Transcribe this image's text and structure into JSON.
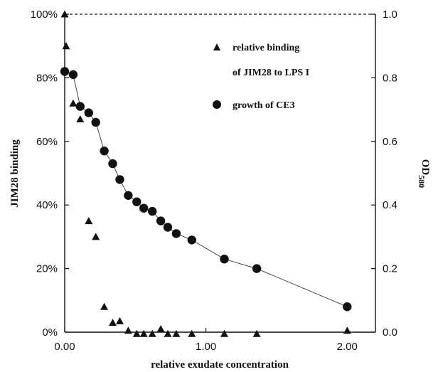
{
  "chart_data": {
    "type": "scatter",
    "title": "",
    "xlabel": "relative exudate concentration",
    "ylabel_left": "JIM28 binding",
    "ylabel_right": {
      "main": "OD",
      "subscript": "580"
    },
    "xlim": [
      0,
      2.2
    ],
    "ylim_left": [
      0,
      100
    ],
    "ylim_right": [
      0,
      1.0
    ],
    "x_ticks": [
      "0.00",
      "1.00",
      "2.00"
    ],
    "y_ticks_left": [
      "0%",
      "20%",
      "40%",
      "60%",
      "80%",
      "100%"
    ],
    "y_ticks_right": [
      "0.0",
      "0.2",
      "0.4",
      "0.6",
      "0.8",
      "1.0"
    ],
    "grid": false,
    "legend_position": "top-right",
    "legend": [
      {
        "marker": "triangle",
        "lines": [
          "relative binding",
          "of JIM28 to LPS I"
        ]
      },
      {
        "marker": "circle",
        "lines": [
          "growth of CE3"
        ]
      }
    ],
    "series": [
      {
        "name": "relative binding of JIM28 to LPS I",
        "axis": "left",
        "marker": "triangle",
        "connected": false,
        "x": [
          0.0,
          0.01,
          0.06,
          0.11,
          0.17,
          0.22,
          0.28,
          0.34,
          0.39,
          0.45,
          0.51,
          0.56,
          0.62,
          0.68,
          0.73,
          0.79,
          0.9,
          1.13,
          1.36,
          2.0
        ],
        "y": [
          100,
          90,
          72,
          67,
          35,
          30,
          8,
          3,
          3.5,
          0.5,
          -0.5,
          -0.5,
          -0.5,
          1,
          -0.5,
          -0.5,
          -0.5,
          -0.5,
          -0.5,
          0.5
        ]
      },
      {
        "name": "growth of CE3",
        "axis": "right",
        "marker": "circle",
        "connected": true,
        "x": [
          0.0,
          0.06,
          0.11,
          0.17,
          0.22,
          0.28,
          0.34,
          0.39,
          0.45,
          0.51,
          0.56,
          0.62,
          0.68,
          0.73,
          0.79,
          0.9,
          1.13,
          1.36,
          2.0
        ],
        "y": [
          0.82,
          0.81,
          0.71,
          0.69,
          0.66,
          0.57,
          0.53,
          0.48,
          0.43,
          0.41,
          0.39,
          0.38,
          0.35,
          0.33,
          0.31,
          0.29,
          0.23,
          0.2,
          0.08
        ]
      }
    ]
  }
}
